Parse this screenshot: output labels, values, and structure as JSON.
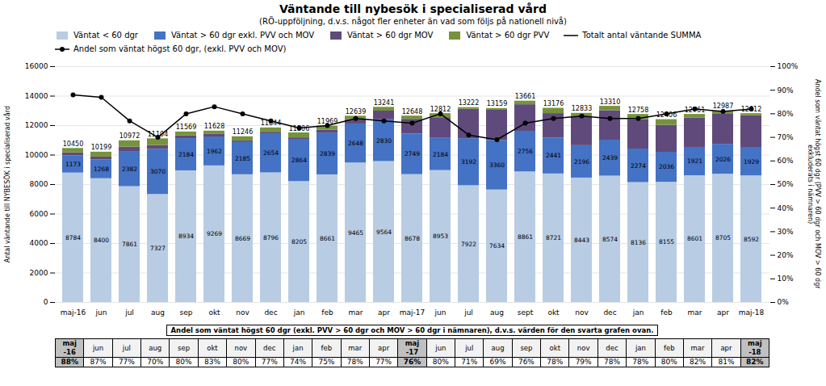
{
  "chart_data": {
    "type": "bar",
    "title": "Väntande till nybesök i specialiserad vård",
    "subtitle": "(RÖ-uppföljning, d.v.s. något fler enheter än vad som följs på nationell nivå)",
    "ylabel": "Antal väntande till NYBESÖK i specialiserad vård",
    "y2label": "Andel som väntat högst 60 dgr (PVV > 60 dgr och MOV > 60 dgr\nexkluderats i nämnaren)",
    "categories": [
      "maj-16",
      "jun",
      "jul",
      "aug",
      "sep",
      "okt",
      "nov",
      "dec",
      "jan",
      "feb",
      "mar",
      "apr",
      "maj-17",
      "jun",
      "jul",
      "aug",
      "sept",
      "okt",
      "nov",
      "dec",
      "jan",
      "feb",
      "mar",
      "apr",
      "maj-18"
    ],
    "stacked": true,
    "grid": true,
    "legend": "top",
    "ylim": [
      0,
      16000
    ],
    "yticks": [
      0,
      2000,
      4000,
      6000,
      8000,
      10000,
      12000,
      14000,
      16000
    ],
    "y2lim": [
      0,
      100
    ],
    "y2ticks": [
      {
        "value": 0,
        "label": "0%"
      },
      {
        "value": 10,
        "label": "10%"
      },
      {
        "value": 20,
        "label": "20%"
      },
      {
        "value": 30,
        "label": "30%"
      },
      {
        "value": 40,
        "label": "40%"
      },
      {
        "value": 50,
        "label": "50%"
      },
      {
        "value": 60,
        "label": "60%"
      },
      {
        "value": 70,
        "label": "70%"
      },
      {
        "value": 80,
        "label": "80%"
      },
      {
        "value": 90,
        "label": "90%"
      },
      {
        "value": 100,
        "label": "100%"
      }
    ],
    "series": [
      {
        "name": "Väntat < 60 dgr",
        "color": "#b8cce4",
        "data_labels": true,
        "values": [
          8784,
          8400,
          7861,
          7327,
          8934,
          9269,
          8669,
          8796,
          8205,
          8661,
          9465,
          9564,
          8678,
          8953,
          7922,
          7634,
          8861,
          8721,
          8443,
          8574,
          8136,
          8155,
          8601,
          8705,
          8592
        ]
      },
      {
        "name": "Väntat > 60 dgr exkl. PVV och MOV",
        "color": "#4472c4",
        "data_labels": true,
        "values": [
          1173,
          1268,
          2382,
          3070,
          2184,
          1962,
          2185,
          2654,
          2864,
          2839,
          2648,
          2830,
          2749,
          2184,
          3192,
          3360,
          2756,
          2441,
          2196,
          2439,
          2274,
          2036,
          1921,
          2026,
          1929
        ]
      },
      {
        "name": "Väntat > 60 dgr MOV",
        "color": "#604a7b",
        "values": [
          195,
          200,
          295,
          260,
          200,
          200,
          100,
          100,
          100,
          200,
          298,
          593,
          1000,
          1400,
          2000,
          2047,
          1800,
          1655,
          2000,
          2000,
          2000,
          1833,
          2000,
          2076,
          2153
        ]
      },
      {
        "name": "Väntat > 60 dgr PVV",
        "color": "#76933c",
        "values": [
          298,
          331,
          434,
          447,
          251,
          197,
          292,
          294,
          337,
          269,
          228,
          254,
          221,
          275,
          108,
          118,
          244,
          359,
          194,
          297,
          348,
          382,
          239,
          180,
          138
        ]
      },
      {
        "name": "Totalt antal väntande SUMMA",
        "type": "text",
        "color": "#000000",
        "data_labels": true,
        "values": [
          10450,
          10199,
          10972,
          11104,
          11569,
          11628,
          11246,
          11844,
          11506,
          11969,
          12639,
          13241,
          12648,
          12812,
          13222,
          13159,
          13661,
          13176,
          12833,
          13310,
          12758,
          12406,
          12761,
          12987,
          12812
        ]
      },
      {
        "name": "Andel som väntat högst 60 dgr, (exkl. PVV och MOV)",
        "type": "line",
        "axis": "y2",
        "color": "#000000",
        "marker": "circle",
        "line_style": "solid",
        "values": [
          88,
          87,
          77,
          70,
          80,
          83,
          80,
          77,
          74,
          75,
          78,
          77,
          76,
          80,
          71,
          69,
          76,
          78,
          79,
          78,
          78,
          80,
          82,
          81,
          82
        ]
      }
    ],
    "table": {
      "title": "Andel som väntat högst 60 dgr (exkl. PVV > 60 dgr och MOV > 60 dgr i nämnaren), d.v.s. värden för den svarta grafen ovan.",
      "columns": [
        [
          "maj",
          "-16"
        ],
        [
          "jun"
        ],
        [
          "jul"
        ],
        [
          "aug"
        ],
        [
          "sep"
        ],
        [
          "okt"
        ],
        [
          "nov"
        ],
        [
          "dec"
        ],
        [
          "jan"
        ],
        [
          "feb"
        ],
        [
          "mar"
        ],
        [
          "apr"
        ],
        [
          "maj",
          "-17"
        ],
        [
          "jun"
        ],
        [
          "jul"
        ],
        [
          "aug"
        ],
        [
          "sep"
        ],
        [
          "okt"
        ],
        [
          "nov"
        ],
        [
          "dec"
        ],
        [
          "jan"
        ],
        [
          "feb"
        ],
        [
          "mar"
        ],
        [
          "apr"
        ],
        [
          "maj",
          "-18"
        ]
      ],
      "values": [
        88,
        87,
        77,
        70,
        80,
        83,
        80,
        77,
        74,
        75,
        78,
        77,
        76,
        80,
        71,
        69,
        76,
        78,
        79,
        78,
        78,
        80,
        82,
        81,
        82
      ],
      "value_labels": [
        "88%",
        "87%",
        "77%",
        "70%",
        "80%",
        "83%",
        "80%",
        "77%",
        "74%",
        "75%",
        "78%",
        "77%",
        "76%",
        "80%",
        "71%",
        "69%",
        "76%",
        "78%",
        "79%",
        "78%",
        "78%",
        "80%",
        "82%",
        "81%",
        "82%"
      ]
    }
  }
}
